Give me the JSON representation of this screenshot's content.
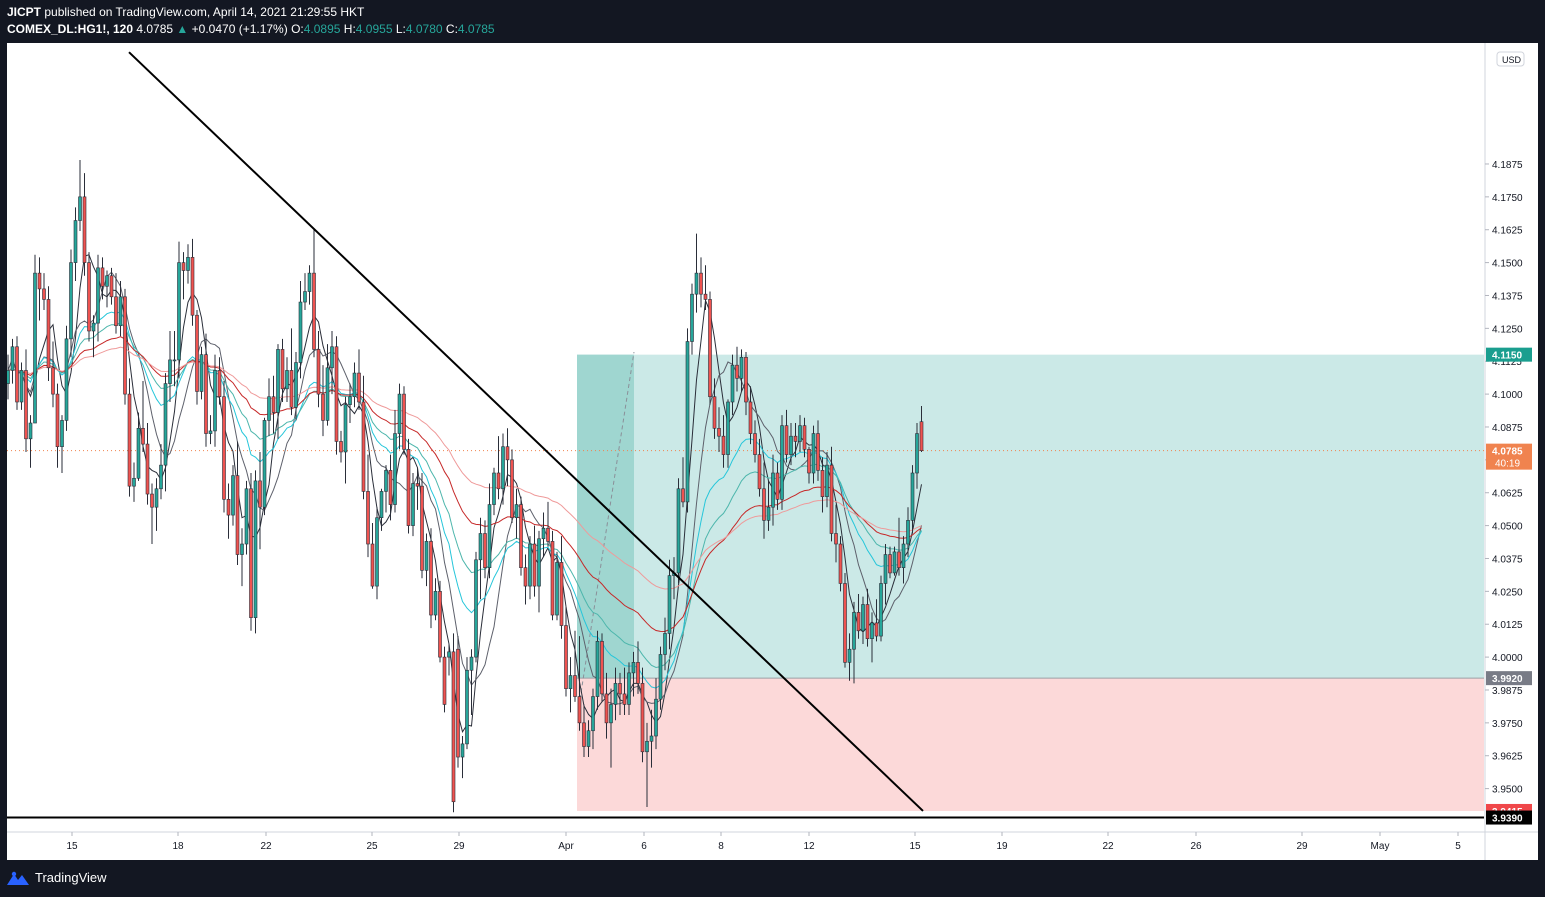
{
  "header": {
    "publisher": "JICPT",
    "published_text": "published on TradingView.com, April 14, 2021 21:29:55 HKT",
    "symbol": "COMEX_DL:HG1!, 120",
    "last": "4.0785",
    "arrow": "▲",
    "change": "+0.0470 (+1.17%)",
    "o_label": "O:",
    "o_value": "4.0895",
    "h_label": "H:",
    "h_value": "4.0955",
    "l_label": "L:",
    "l_value": "4.0780",
    "c_label": "C:",
    "c_value": "4.0785"
  },
  "footer": {
    "brand": "TradingView",
    "logo_icon": "tradingview-logo-icon"
  },
  "colors": {
    "up": "#26a69a",
    "down": "#ef5350",
    "profit_zone": "#c8e8e6",
    "loss_zone": "#fcd9d9",
    "trendline": "#000000",
    "current_price_tag": "#f0834f",
    "target_tag": "#1a9e8f",
    "entry_tag": "#787b86",
    "stop_tag": "#f0474a"
  },
  "chart_data": {
    "type": "candlestick",
    "title": "COMEX_DL:HG1!, 120",
    "currency": "USD",
    "ylim": [
      3.9335,
      4.2335
    ],
    "y_ticks": [
      "4.1875",
      "4.1750",
      "4.1625",
      "4.1500",
      "4.1375",
      "4.1250",
      "4.1125",
      "4.1000",
      "4.0875",
      "4.0750",
      "4.0625",
      "4.0500",
      "4.0375",
      "4.0250",
      "4.0125",
      "4.0000",
      "3.9875",
      "3.9750",
      "3.9625",
      "3.9500"
    ],
    "x_ticks": [
      "15",
      "18",
      "22",
      "25",
      "29",
      "Apr",
      "6",
      "8",
      "12",
      "15",
      "19",
      "22",
      "26",
      "29",
      "May",
      "5"
    ],
    "current_price": {
      "value": "4.0785",
      "countdown": "40:19"
    },
    "trade_box": {
      "target": "4.1150",
      "entry": "3.9920",
      "stop": "3.9415",
      "start_date": "Apr 1",
      "end_date": "Apr 30"
    },
    "horizontal_line": {
      "value": "3.9390"
    },
    "trendline": {
      "from": {
        "date": "Mar 16",
        "price": 4.23
      },
      "to": {
        "date": "Apr 15",
        "price": 3.9415
      }
    },
    "candles": [
      [
        4.104,
        4.115,
        4.098,
        4.109
      ],
      [
        4.109,
        4.121,
        4.104,
        4.118
      ],
      [
        4.118,
        4.122,
        4.094,
        4.097
      ],
      [
        4.097,
        4.112,
        4.094,
        4.109
      ],
      [
        4.109,
        4.117,
        4.078,
        4.083
      ],
      [
        4.083,
        4.092,
        4.072,
        4.089
      ],
      [
        4.089,
        4.153,
        4.089,
        4.146
      ],
      [
        4.146,
        4.152,
        4.128,
        4.14
      ],
      [
        4.14,
        4.146,
        4.132,
        4.136
      ],
      [
        4.136,
        4.141,
        4.105,
        4.11
      ],
      [
        4.11,
        4.12,
        4.095,
        4.1
      ],
      [
        4.1,
        4.104,
        4.072,
        4.08
      ],
      [
        4.08,
        4.092,
        4.07,
        4.09
      ],
      [
        4.09,
        4.126,
        4.086,
        4.121
      ],
      [
        4.121,
        4.155,
        4.114,
        4.15
      ],
      [
        4.15,
        4.171,
        4.143,
        4.166
      ],
      [
        4.166,
        4.189,
        4.162,
        4.175
      ],
      [
        4.175,
        4.184,
        4.145,
        4.15
      ],
      [
        4.15,
        4.154,
        4.12,
        4.124
      ],
      [
        4.124,
        4.13,
        4.114,
        4.127
      ],
      [
        4.127,
        4.153,
        4.12,
        4.148
      ],
      [
        4.148,
        4.152,
        4.136,
        4.141
      ],
      [
        4.141,
        4.147,
        4.133,
        4.145
      ],
      [
        4.145,
        4.148,
        4.134,
        4.137
      ],
      [
        4.137,
        4.146,
        4.123,
        4.126
      ],
      [
        4.126,
        4.143,
        4.122,
        4.137
      ],
      [
        4.137,
        4.14,
        4.096,
        4.1
      ],
      [
        4.1,
        4.106,
        4.061,
        4.065
      ],
      [
        4.065,
        4.074,
        4.059,
        4.068
      ],
      [
        4.068,
        4.093,
        4.067,
        4.087
      ],
      [
        4.087,
        4.105,
        4.078,
        4.081
      ],
      [
        4.081,
        4.089,
        4.058,
        4.062
      ],
      [
        4.062,
        4.066,
        4.043,
        4.057
      ],
      [
        4.057,
        4.068,
        4.048,
        4.064
      ],
      [
        4.064,
        4.081,
        4.06,
        4.073
      ],
      [
        4.073,
        4.108,
        4.063,
        4.104
      ],
      [
        4.104,
        4.124,
        4.097,
        4.113
      ],
      [
        4.113,
        4.124,
        4.103,
        4.113
      ],
      [
        4.113,
        4.158,
        4.106,
        4.15
      ],
      [
        4.15,
        4.154,
        4.136,
        4.147
      ],
      [
        4.147,
        4.157,
        4.142,
        4.152
      ],
      [
        4.152,
        4.159,
        4.126,
        4.13
      ],
      [
        4.13,
        4.132,
        4.096,
        4.101
      ],
      [
        4.101,
        4.118,
        4.098,
        4.115
      ],
      [
        4.115,
        4.123,
        4.08,
        4.085
      ],
      [
        4.085,
        4.092,
        4.081,
        4.086
      ],
      [
        4.086,
        4.115,
        4.08,
        4.109
      ],
      [
        4.109,
        4.114,
        4.096,
        4.099
      ],
      [
        4.099,
        4.105,
        4.055,
        4.06
      ],
      [
        4.06,
        4.066,
        4.045,
        4.054
      ],
      [
        4.054,
        4.073,
        4.05,
        4.069
      ],
      [
        4.069,
        4.082,
        4.035,
        4.039
      ],
      [
        4.039,
        4.049,
        4.027,
        4.043
      ],
      [
        4.043,
        4.067,
        4.039,
        4.064
      ],
      [
        4.064,
        4.07,
        4.01,
        4.015
      ],
      [
        4.015,
        4.071,
        4.009,
        4.067
      ],
      [
        4.067,
        4.078,
        4.041,
        4.057
      ],
      [
        4.057,
        4.091,
        4.054,
        4.09
      ],
      [
        4.09,
        4.106,
        4.084,
        4.099
      ],
      [
        4.099,
        4.107,
        4.085,
        4.093
      ],
      [
        4.093,
        4.119,
        4.083,
        4.117
      ],
      [
        4.117,
        4.121,
        4.097,
        4.102
      ],
      [
        4.102,
        4.114,
        4.097,
        4.109
      ],
      [
        4.109,
        4.125,
        4.092,
        4.095
      ],
      [
        4.095,
        4.116,
        4.09,
        4.112
      ],
      [
        4.112,
        4.143,
        4.106,
        4.135
      ],
      [
        4.135,
        4.146,
        4.132,
        4.139
      ],
      [
        4.139,
        4.149,
        4.134,
        4.146
      ],
      [
        4.146,
        4.163,
        4.114,
        4.117
      ],
      [
        4.117,
        4.124,
        4.095,
        4.1
      ],
      [
        4.1,
        4.111,
        4.084,
        4.09
      ],
      [
        4.09,
        4.119,
        4.088,
        4.11
      ],
      [
        4.11,
        4.124,
        4.1,
        4.118
      ],
      [
        4.118,
        4.122,
        4.077,
        4.082
      ],
      [
        4.082,
        4.086,
        4.074,
        4.078
      ],
      [
        4.078,
        4.099,
        4.066,
        4.096
      ],
      [
        4.096,
        4.104,
        4.089,
        4.099
      ],
      [
        4.099,
        4.112,
        4.095,
        4.108
      ],
      [
        4.108,
        4.117,
        4.094,
        4.097
      ],
      [
        4.097,
        4.107,
        4.06,
        4.063
      ],
      [
        4.063,
        4.077,
        4.038,
        4.043
      ],
      [
        4.043,
        4.051,
        4.026,
        4.027
      ],
      [
        4.027,
        4.057,
        4.022,
        4.053
      ],
      [
        4.053,
        4.064,
        4.048,
        4.063
      ],
      [
        4.063,
        4.073,
        4.055,
        4.071
      ],
      [
        4.071,
        4.077,
        4.052,
        4.058
      ],
      [
        4.058,
        4.094,
        4.055,
        4.085
      ],
      [
        4.085,
        4.104,
        4.079,
        4.1
      ],
      [
        4.1,
        4.103,
        4.077,
        4.079
      ],
      [
        4.079,
        4.083,
        4.047,
        4.05
      ],
      [
        4.05,
        4.07,
        4.046,
        4.066
      ],
      [
        4.066,
        4.072,
        4.056,
        4.065
      ],
      [
        4.065,
        4.07,
        4.03,
        4.033
      ],
      [
        4.033,
        4.047,
        4.027,
        4.044
      ],
      [
        4.044,
        4.049,
        4.011,
        4.016
      ],
      [
        4.016,
        4.03,
        4.014,
        4.025
      ],
      [
        4.025,
        4.029,
        3.998,
        4.0
      ],
      [
        4.0,
        4.004,
        3.979,
        3.982
      ],
      [
        4.0,
        4.005,
        3.993,
        4.002
      ],
      [
        4.002,
        4.009,
        3.941,
        3.945
      ],
      [
        4.003,
        4.008,
        3.958,
        3.962
      ],
      [
        3.962,
        3.97,
        3.954,
        3.967
      ],
      [
        3.967,
        4.0,
        3.965,
        3.995
      ],
      [
        3.995,
        4.003,
        3.978,
        4.0
      ],
      [
        4.0,
        4.04,
        3.998,
        4.037
      ],
      [
        4.037,
        4.053,
        4.022,
        4.047
      ],
      [
        4.047,
        4.052,
        4.03,
        4.034
      ],
      [
        4.034,
        4.066,
        4.03,
        4.058
      ],
      [
        4.058,
        4.072,
        4.054,
        4.07
      ],
      [
        4.07,
        4.084,
        4.06,
        4.064
      ],
      [
        4.064,
        4.085,
        4.058,
        4.08
      ],
      [
        4.08,
        4.087,
        4.065,
        4.075
      ],
      [
        4.075,
        4.079,
        4.051,
        4.053
      ],
      [
        4.053,
        4.064,
        4.045,
        4.058
      ],
      [
        4.058,
        4.061,
        4.031,
        4.034
      ],
      [
        4.034,
        4.039,
        4.02,
        4.027
      ],
      [
        4.027,
        4.046,
        4.022,
        4.043
      ],
      [
        4.043,
        4.05,
        4.023,
        4.027
      ],
      [
        4.027,
        4.048,
        4.017,
        4.045
      ],
      [
        4.045,
        4.055,
        4.038,
        4.049
      ],
      [
        4.049,
        4.059,
        4.042,
        4.044
      ],
      [
        4.044,
        4.048,
        4.014,
        4.016
      ],
      [
        4.016,
        4.04,
        4.014,
        4.036
      ],
      [
        4.036,
        4.046,
        4.007,
        4.012
      ],
      [
        4.012,
        4.019,
        3.985,
        3.988
      ],
      [
        3.988,
        4.0,
        3.979,
        3.993
      ],
      [
        3.993,
        4.01,
        3.983,
        3.985
      ],
      [
        3.985,
        4.008,
        3.972,
        3.975
      ],
      [
        3.975,
        3.982,
        3.962,
        3.966
      ],
      [
        3.966,
        3.976,
        3.962,
        3.972
      ],
      [
        3.972,
        3.988,
        3.965,
        3.985
      ],
      [
        3.985,
        4.01,
        3.98,
        4.006
      ],
      [
        4.006,
        4.009,
        3.983,
        3.986
      ],
      [
        3.986,
        3.994,
        3.969,
        3.975
      ],
      [
        3.975,
        3.988,
        3.958,
        3.982
      ],
      [
        3.982,
        3.996,
        3.976,
        3.99
      ],
      [
        3.99,
        3.994,
        3.978,
        3.986
      ],
      [
        3.986,
        3.996,
        3.978,
        3.982
      ],
      [
        3.982,
        3.998,
        3.978,
        3.994
      ],
      [
        3.994,
        4.002,
        3.985,
        3.998
      ],
      [
        3.998,
        4.006,
        3.986,
        3.99
      ],
      [
        3.99,
        3.996,
        3.96,
        3.964
      ],
      [
        3.964,
        3.975,
        3.943,
        3.968
      ],
      [
        3.968,
        3.98,
        3.958,
        3.97
      ],
      [
        3.97,
        3.992,
        3.965,
        3.984
      ],
      [
        3.984,
        4.004,
        3.98,
        4.001
      ],
      [
        4.001,
        4.015,
        3.995,
        4.009
      ],
      [
        4.009,
        4.037,
        4.003,
        4.031
      ],
      [
        4.031,
        4.038,
        4.022,
        4.032
      ],
      [
        4.032,
        4.068,
        4.028,
        4.064
      ],
      [
        4.064,
        4.076,
        4.057,
        4.059
      ],
      [
        4.059,
        4.125,
        4.055,
        4.12
      ],
      [
        4.12,
        4.142,
        4.115,
        4.138
      ],
      [
        4.138,
        4.161,
        4.131,
        4.146
      ],
      [
        4.146,
        4.152,
        4.133,
        4.138
      ],
      [
        4.138,
        4.149,
        4.132,
        4.136
      ],
      [
        4.136,
        4.139,
        4.096,
        4.099
      ],
      [
        4.099,
        4.106,
        4.083,
        4.087
      ],
      [
        4.087,
        4.095,
        4.078,
        4.084
      ],
      [
        4.084,
        4.092,
        4.072,
        4.077
      ],
      [
        4.077,
        4.098,
        4.072,
        4.097
      ],
      [
        4.097,
        4.115,
        4.092,
        4.111
      ],
      [
        4.111,
        4.118,
        4.101,
        4.106
      ],
      [
        4.106,
        4.117,
        4.101,
        4.114
      ],
      [
        4.114,
        4.116,
        4.092,
        4.097
      ],
      [
        4.097,
        4.103,
        4.081,
        4.085
      ],
      [
        4.085,
        4.09,
        4.074,
        4.077
      ],
      [
        4.077,
        4.083,
        4.061,
        4.064
      ],
      [
        4.064,
        4.074,
        4.045,
        4.052
      ],
      [
        4.052,
        4.067,
        4.048,
        4.057
      ],
      [
        4.057,
        4.077,
        4.05,
        4.07
      ],
      [
        4.07,
        4.074,
        4.056,
        4.06
      ],
      [
        4.06,
        4.092,
        4.056,
        4.088
      ],
      [
        4.088,
        4.094,
        4.074,
        4.077
      ],
      [
        4.077,
        4.089,
        4.073,
        4.084
      ],
      [
        4.084,
        4.089,
        4.076,
        4.082
      ],
      [
        4.082,
        4.092,
        4.078,
        4.088
      ],
      [
        4.088,
        4.091,
        4.076,
        4.079
      ],
      [
        4.079,
        4.08,
        4.066,
        4.07
      ],
      [
        4.07,
        4.088,
        4.066,
        4.085
      ],
      [
        4.085,
        4.09,
        4.067,
        4.071
      ],
      [
        4.071,
        4.076,
        4.055,
        4.061
      ],
      [
        4.061,
        4.078,
        4.057,
        4.073
      ],
      [
        4.073,
        4.08,
        4.044,
        4.047
      ],
      [
        4.047,
        4.058,
        4.036,
        4.043
      ],
      [
        4.043,
        4.046,
        4.025,
        4.028
      ],
      [
        4.028,
        4.032,
        3.996,
        3.998
      ],
      [
        3.998,
        4.009,
        3.991,
        4.003
      ],
      [
        4.003,
        4.021,
        3.99,
        4.017
      ],
      [
        4.017,
        4.024,
        4.007,
        4.01
      ],
      [
        4.01,
        4.023,
        4.005,
        4.02
      ],
      [
        4.02,
        4.026,
        4.004,
        4.007
      ],
      [
        4.007,
        4.017,
        3.998,
        4.013
      ],
      [
        4.013,
        4.022,
        4.006,
        4.008
      ],
      [
        4.008,
        4.031,
        4.006,
        4.028
      ],
      [
        4.028,
        4.043,
        4.02,
        4.039
      ],
      [
        4.039,
        4.042,
        4.03,
        4.032
      ],
      [
        4.032,
        4.042,
        4.031,
        4.04
      ],
      [
        4.04,
        4.053,
        4.031,
        4.034
      ],
      [
        4.034,
        4.046,
        4.028,
        4.043
      ],
      [
        4.043,
        4.057,
        4.038,
        4.052
      ],
      [
        4.052,
        4.073,
        4.047,
        4.07
      ],
      [
        4.07,
        4.089,
        4.064,
        4.085
      ],
      [
        4.0895,
        4.0955,
        4.078,
        4.0785
      ]
    ]
  }
}
